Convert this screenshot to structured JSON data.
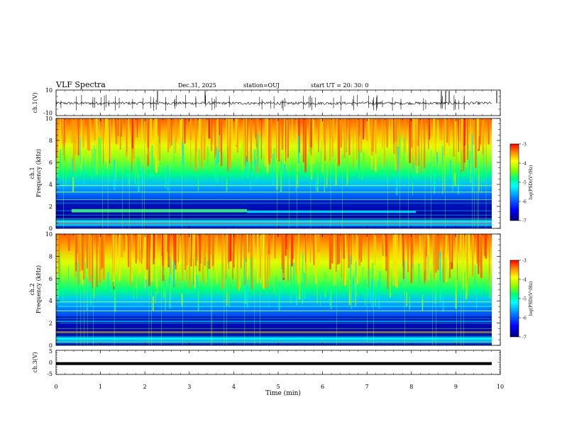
{
  "header": {
    "title": "VLF Spectra",
    "date": "Dec.31, 2025",
    "station": "station=OUJ",
    "start_ut": "start  UT =   20: 30: 0"
  },
  "chart_data": [
    {
      "type": "line",
      "name": "waveform-ch1",
      "ylabel": "ch.1(V)",
      "ylim": [
        -10,
        10
      ],
      "yticks": [
        "10",
        "-10"
      ],
      "xlim": [
        0,
        10
      ]
    },
    {
      "type": "heatmap",
      "name": "spectrogram-ch1",
      "ylabel_top": "ch.1",
      "ylabel": "Frequency  (kHz)",
      "ylim": [
        0,
        10
      ],
      "yticks": [
        "0",
        "2",
        "4",
        "6",
        "8",
        "10"
      ],
      "xlim": [
        0,
        10
      ],
      "colorbar": {
        "label": "log(PSD)(V²/Hz)",
        "ticks": [
          "-3",
          "-4",
          "-5",
          "-6",
          "-7"
        ],
        "range": [
          -7,
          -3
        ]
      }
    },
    {
      "type": "heatmap",
      "name": "spectrogram-ch2",
      "ylabel_top": "ch.2",
      "ylabel": "Frequency  (kHz)",
      "ylim": [
        0,
        10
      ],
      "yticks": [
        "0",
        "2",
        "4",
        "6",
        "8",
        "10"
      ],
      "xlim": [
        0,
        10
      ],
      "colorbar": {
        "label": "log(PSD)(V²/Hz)",
        "ticks": [
          "-3",
          "-4",
          "-5",
          "-6",
          "-7"
        ],
        "range": [
          -7,
          -3
        ]
      }
    },
    {
      "type": "line",
      "name": "waveform-ch3",
      "ylabel": "ch.3(V)",
      "ylim": [
        -5,
        5
      ],
      "yticks": [
        "5",
        "0",
        "-5"
      ],
      "xlim": [
        0,
        10
      ],
      "value": -0.5
    }
  ],
  "xaxis": {
    "label": "Time  (min)",
    "ticks": [
      "0",
      "1",
      "2",
      "3",
      "4",
      "5",
      "6",
      "7",
      "8",
      "9",
      "10"
    ]
  },
  "colormap": [
    "#00007f",
    "#0000ff",
    "#007fff",
    "#00ffff",
    "#7fff7f",
    "#ffff00",
    "#ff7f00",
    "#ff0000"
  ]
}
